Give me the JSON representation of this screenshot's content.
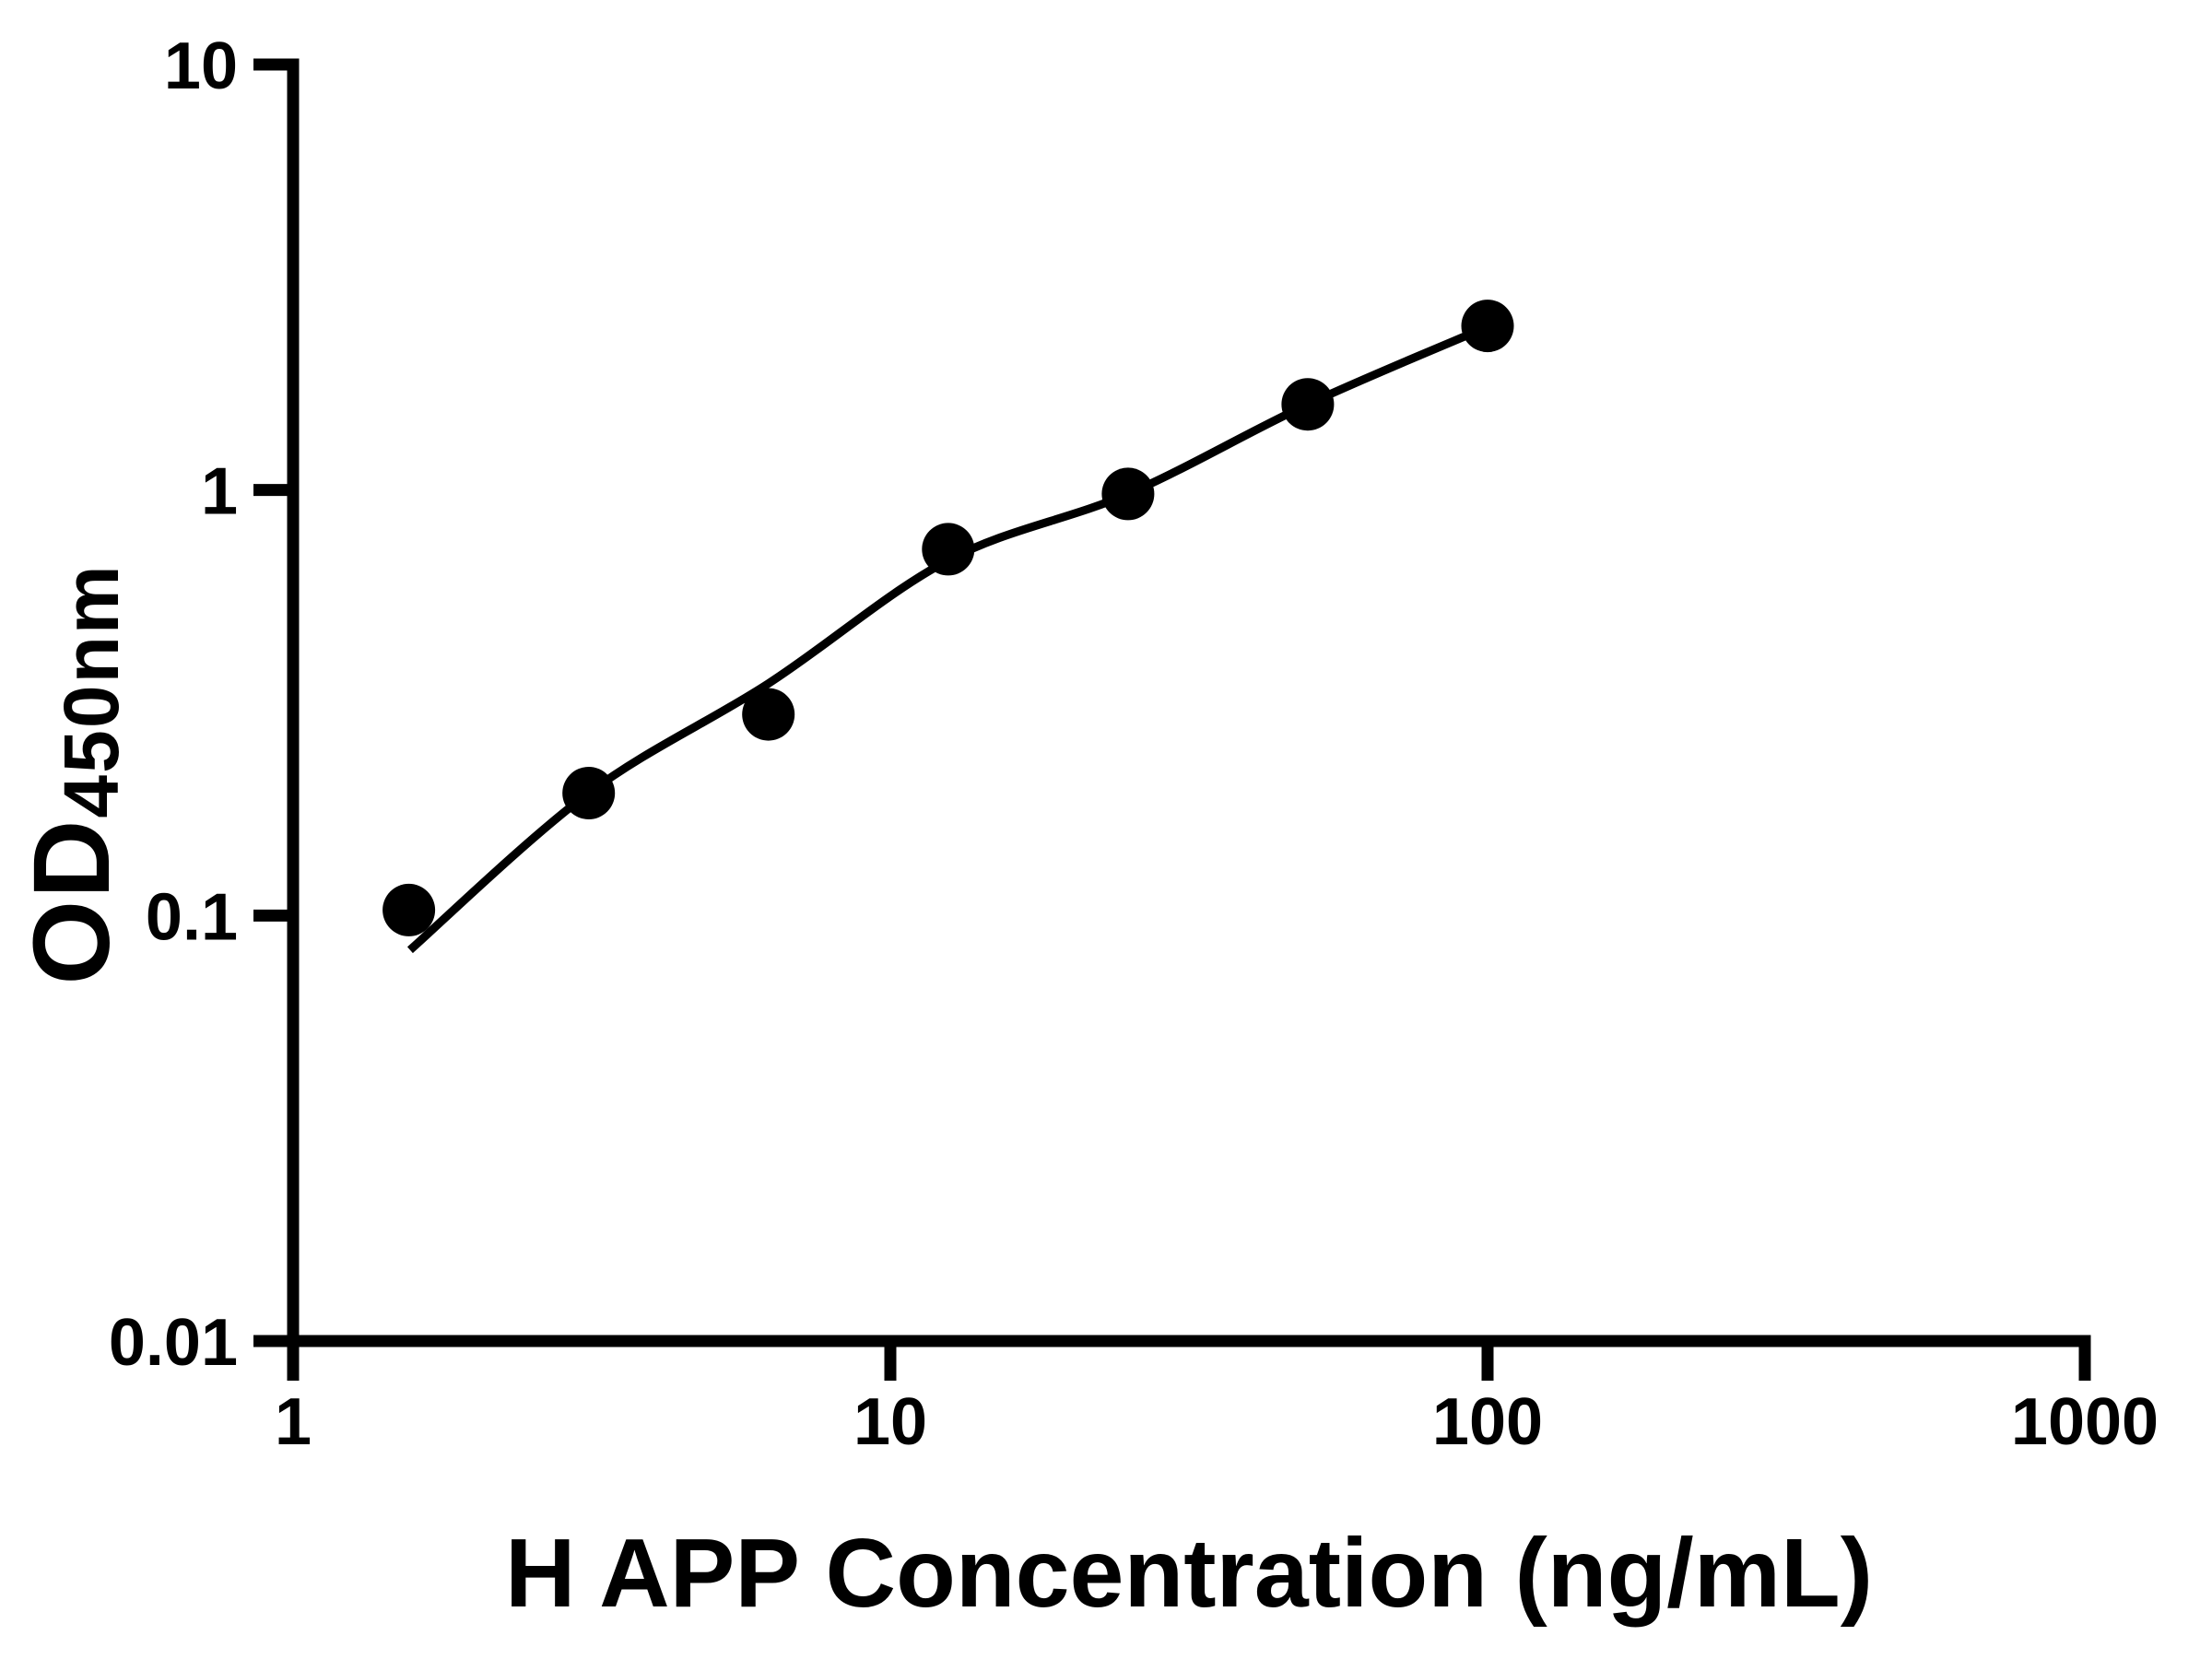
{
  "titles": {
    "x": "H APP Concentration (ng/mL)",
    "y_main": "OD",
    "y_sub": "450nm"
  },
  "chart_data": {
    "type": "scatter",
    "title": "",
    "xlabel": "H APP Concentration (ng/mL)",
    "ylabel": "OD450nm",
    "x_scale": "log",
    "y_scale": "log",
    "xlim": [
      1,
      1000
    ],
    "ylim": [
      0.01,
      10
    ],
    "grid": false,
    "legend": null,
    "x_ticks": [
      {
        "value": 1,
        "label": "1"
      },
      {
        "value": 10,
        "label": "10"
      },
      {
        "value": 100,
        "label": "100"
      },
      {
        "value": 1000,
        "label": "1000"
      }
    ],
    "y_ticks": [
      {
        "value": 0.01,
        "label": "0.01"
      },
      {
        "value": 0.1,
        "label": "0.1"
      },
      {
        "value": 1,
        "label": "1"
      },
      {
        "value": 10,
        "label": "10"
      }
    ],
    "series": [
      {
        "name": "standard-points",
        "marker": "circle",
        "color": "#000000",
        "points": [
          {
            "x": 1.5625,
            "y": 0.103
          },
          {
            "x": 3.125,
            "y": 0.194
          },
          {
            "x": 6.25,
            "y": 0.297
          },
          {
            "x": 12.5,
            "y": 0.726
          },
          {
            "x": 25,
            "y": 0.979
          },
          {
            "x": 50,
            "y": 1.59
          },
          {
            "x": 100,
            "y": 2.43
          }
        ]
      }
    ],
    "fit_curve": {
      "name": "4pl-fit",
      "color": "#000000",
      "anchors": [
        {
          "x": 1.57,
          "y": 0.083
        },
        {
          "x": 3.125,
          "y": 0.194
        },
        {
          "x": 6.25,
          "y": 0.351
        },
        {
          "x": 12.5,
          "y": 0.684
        },
        {
          "x": 25,
          "y": 0.979
        },
        {
          "x": 50,
          "y": 1.59
        },
        {
          "x": 100,
          "y": 2.42
        }
      ]
    }
  },
  "colors": {
    "foreground": "#000000",
    "background": "#ffffff"
  }
}
